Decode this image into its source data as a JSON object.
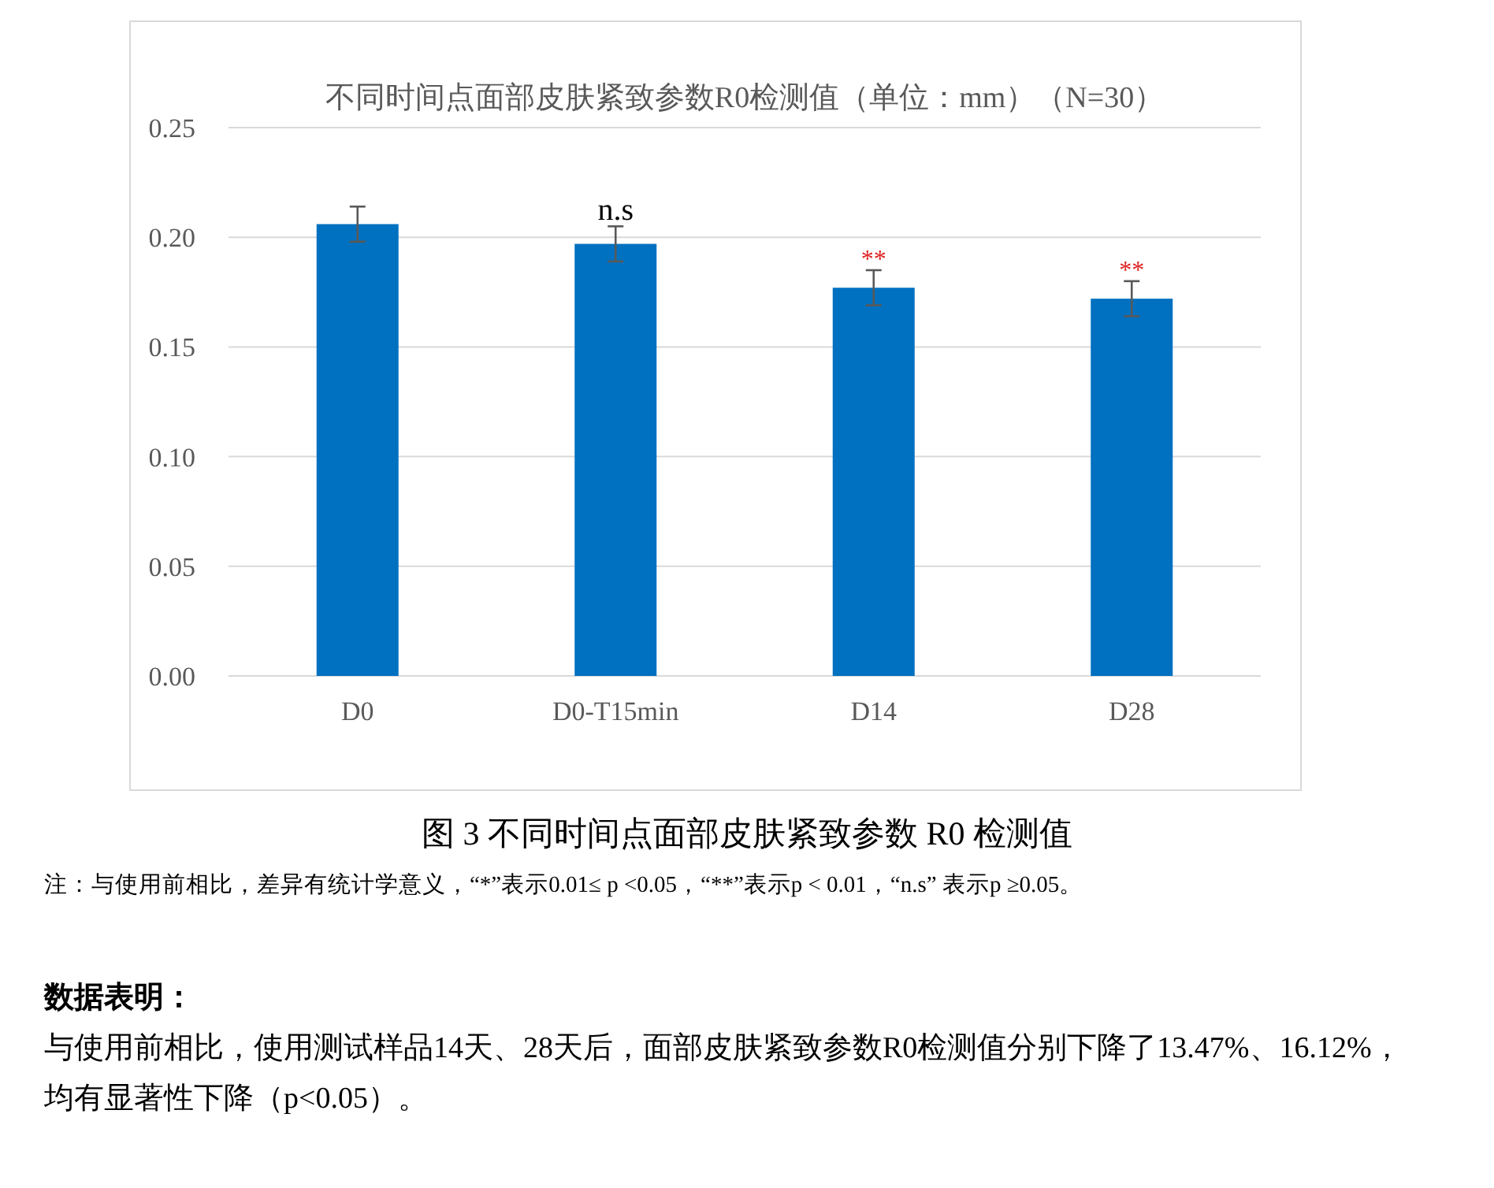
{
  "chart_data": {
    "type": "bar",
    "title": "不同时间点面部皮肤紧致参数R0检测值（单位：mm）（N=30）",
    "categories": [
      "D0",
      "D0-T15min",
      "D14",
      "D28"
    ],
    "values": [
      0.206,
      0.197,
      0.177,
      0.172
    ],
    "errors": [
      0.008,
      0.008,
      0.008,
      0.008
    ],
    "color": "#0070c0",
    "ylim": [
      0,
      0.25
    ],
    "yticks": [
      {
        "value": 0,
        "label": "0.00"
      },
      {
        "value": 0.05,
        "label": "0.05"
      },
      {
        "value": 0.1,
        "label": "0.10"
      },
      {
        "value": 0.15,
        "label": "0.15"
      },
      {
        "value": 0.2,
        "label": "0.20"
      },
      {
        "value": 0.25,
        "label": "0.25"
      }
    ],
    "grid": "y",
    "annotations": [
      {
        "text": "n.s",
        "x": "D0-T15min",
        "y": 0.205
      },
      {
        "text": "**",
        "x": "D14",
        "y": 0.185
      },
      {
        "text": "**",
        "x": "D28",
        "y": 0.18
      },
      "图 3 不同时间点面部皮肤紧致参数 R0 检测值",
      "注：与使用前相比，差异有统计学意义，“*”表示0.01≤ p <0.05，“**”表示p < 0.01，“n.s” 表示p ≥0.05。",
      "数据表明：",
      "与使用前相比，使用测试样品14天、28天后，面部皮肤紧致参数R0检测值分别下降了13.47%、16.12%，均有显著性下降（p<0.05）。"
    ]
  }
}
